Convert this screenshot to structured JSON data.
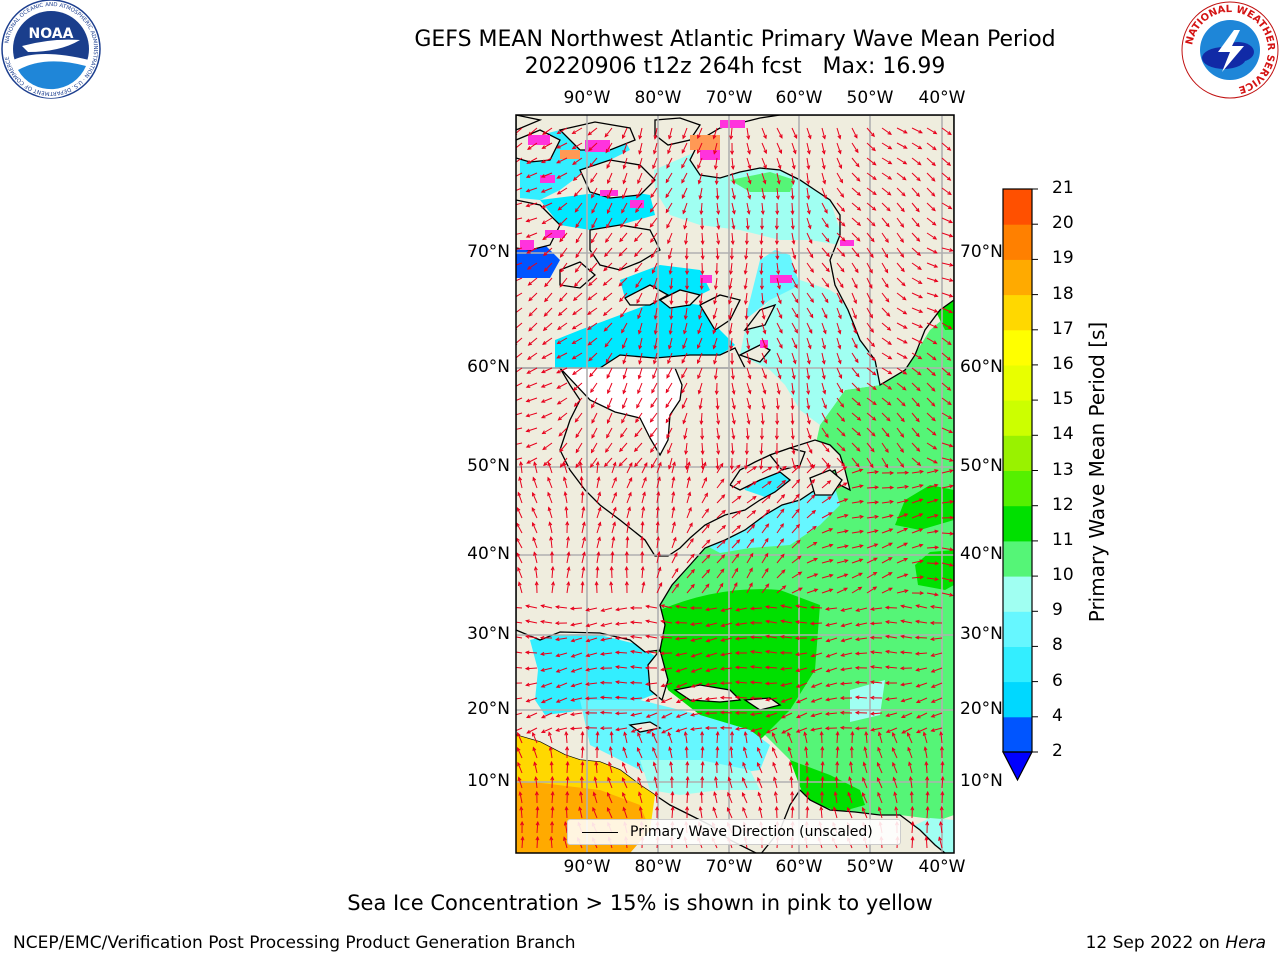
{
  "title": {
    "line1": "GEFS MEAN Northwest Atlantic Primary Wave Mean Period",
    "line2": "20220906 t12z 264h fcst   Max: 16.99"
  },
  "logos": {
    "left": {
      "name": "noaa-logo",
      "text": "NOAA",
      "ring_text": "NATIONAL OCEANIC AND ATMOSPHERIC ADMINISTRATION · U.S. DEPARTMENT OF COMMERCE"
    },
    "right": {
      "name": "nws-logo",
      "ring_text": "NATIONAL WEATHER SERVICE"
    }
  },
  "map": {
    "lon_labels": [
      "90°W",
      "80°W",
      "70°W",
      "60°W",
      "50°W",
      "40°W"
    ],
    "lat_labels": [
      "70°N",
      "60°N",
      "50°N",
      "40°N",
      "30°N",
      "20°N",
      "10°N"
    ],
    "legend_label": "Primary Wave Direction (unscaled)",
    "land_color": "#efedde",
    "vector_color": "#e8001c",
    "grid_color": "#b0b0b0"
  },
  "colorbar": {
    "title": "Primary Wave Mean Period [s]",
    "ticks": [
      "2",
      "4",
      "6",
      "8",
      "9",
      "10",
      "11",
      "12",
      "13",
      "14",
      "15",
      "16",
      "17",
      "18",
      "19",
      "20",
      "21"
    ],
    "colors": [
      "#0055ff",
      "#00d8ff",
      "#33eeff",
      "#66f7ff",
      "#a0fff2",
      "#55f577",
      "#00e000",
      "#55f000",
      "#99f200",
      "#ccff00",
      "#e8ff00",
      "#ffff00",
      "#ffd800",
      "#ffaa00",
      "#ff8000",
      "#ff5000",
      "#ff2000",
      "#ff0000"
    ],
    "extend_min_color": "#0000ff"
  },
  "note": "Sea Ice Concentration > 15% is shown in pink to yellow",
  "footer": {
    "left": "NCEP/EMC/Verification Post Processing Product Generation Branch",
    "right_date": "12 Sep 2022 on ",
    "right_host": "Hera"
  }
}
